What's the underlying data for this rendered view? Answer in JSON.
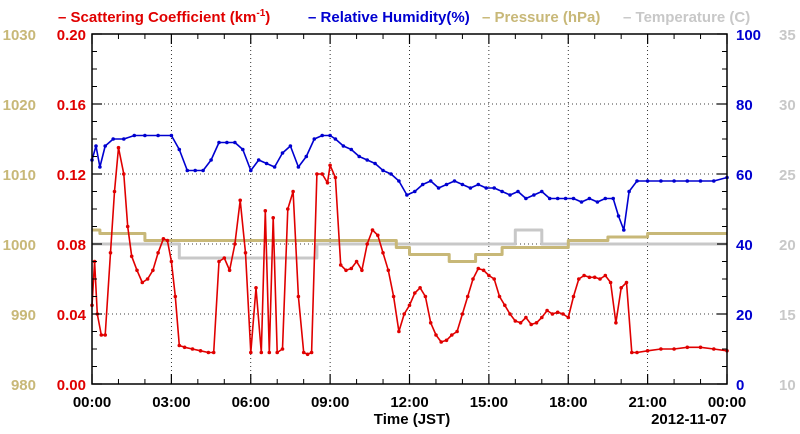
{
  "chart_data": {
    "type": "line",
    "legend": {
      "placement": "top",
      "items": [
        {
          "prefix": "– ",
          "text": "Scattering Coefficient (km",
          "sup": "-1",
          "suffix": ")",
          "color": "#e00000"
        },
        {
          "prefix": "– ",
          "text": "Relative Humidity(%)",
          "color": "#0000d0"
        },
        {
          "prefix": "– ",
          "text": "Pressure (hPa)",
          "color": "#c8b878"
        },
        {
          "prefix": "– ",
          "text": "Temperature (C)",
          "color": "#c8c8c8"
        }
      ]
    },
    "xlabel": "Time (JST)",
    "date_label": "2012-11-07",
    "x_ticks": [
      "00:00",
      "03:00",
      "06:00",
      "09:00",
      "12:00",
      "15:00",
      "18:00",
      "21:00",
      "00:00"
    ],
    "grid": true,
    "axes": {
      "scattering": {
        "side": "left-inner",
        "min": 0,
        "max": 0.2,
        "ticks": [
          "0.00",
          "0.04",
          "0.08",
          "0.12",
          "0.16",
          "0.20"
        ],
        "color": "#e00000"
      },
      "pressure": {
        "side": "left-outer",
        "min": 980,
        "max": 1030,
        "ticks": [
          "980",
          "990",
          "1000",
          "1010",
          "1020",
          "1030"
        ],
        "color": "#c8b878"
      },
      "humidity": {
        "side": "right-inner",
        "min": 0,
        "max": 100,
        "ticks": [
          "0",
          "20",
          "40",
          "60",
          "80",
          "100"
        ],
        "color": "#0000d0"
      },
      "temperature": {
        "side": "right-outer",
        "min": 10,
        "max": 35,
        "ticks": [
          "10",
          "15",
          "20",
          "25",
          "30",
          "35"
        ],
        "color": "#c8c8c8"
      }
    },
    "series": [
      {
        "key": "scattering",
        "axis": "scattering",
        "color": "#e00000",
        "style": "line-markers",
        "x": [
          0,
          0.1,
          0.2,
          0.35,
          0.5,
          0.7,
          0.85,
          1.0,
          1.2,
          1.35,
          1.5,
          1.7,
          1.9,
          2.1,
          2.3,
          2.5,
          2.7,
          2.85,
          3.0,
          3.15,
          3.3,
          3.5,
          3.8,
          4.1,
          4.4,
          4.6,
          4.8,
          5.0,
          5.2,
          5.4,
          5.6,
          5.8,
          6.0,
          6.2,
          6.4,
          6.55,
          6.7,
          6.85,
          7.0,
          7.2,
          7.4,
          7.6,
          7.8,
          8.0,
          8.15,
          8.3,
          8.5,
          8.7,
          8.9,
          9.0,
          9.2,
          9.4,
          9.6,
          9.8,
          10.0,
          10.2,
          10.4,
          10.6,
          10.8,
          11.0,
          11.2,
          11.4,
          11.6,
          11.8,
          12.0,
          12.2,
          12.4,
          12.6,
          12.8,
          13.0,
          13.2,
          13.4,
          13.6,
          13.8,
          14.0,
          14.2,
          14.4,
          14.6,
          14.8,
          15.0,
          15.2,
          15.4,
          15.6,
          15.8,
          16.0,
          16.2,
          16.4,
          16.6,
          16.8,
          17.0,
          17.2,
          17.4,
          17.6,
          17.8,
          18.0,
          18.2,
          18.4,
          18.6,
          18.8,
          19.0,
          19.2,
          19.4,
          19.6,
          19.8,
          20.0,
          20.2,
          20.4,
          20.6,
          21.0,
          21.5,
          22.0,
          22.5,
          23.0,
          23.5,
          24.0
        ],
        "values": [
          0.045,
          0.07,
          0.04,
          0.028,
          0.028,
          0.075,
          0.11,
          0.135,
          0.12,
          0.09,
          0.073,
          0.065,
          0.058,
          0.06,
          0.065,
          0.075,
          0.083,
          0.082,
          0.07,
          0.05,
          0.022,
          0.021,
          0.02,
          0.019,
          0.018,
          0.018,
          0.07,
          0.072,
          0.065,
          0.08,
          0.105,
          0.075,
          0.018,
          0.055,
          0.018,
          0.099,
          0.018,
          0.095,
          0.018,
          0.02,
          0.1,
          0.11,
          0.05,
          0.018,
          0.017,
          0.018,
          0.12,
          0.12,
          0.115,
          0.125,
          0.118,
          0.068,
          0.065,
          0.066,
          0.07,
          0.065,
          0.08,
          0.088,
          0.085,
          0.075,
          0.065,
          0.05,
          0.03,
          0.04,
          0.045,
          0.052,
          0.055,
          0.05,
          0.035,
          0.028,
          0.024,
          0.025,
          0.028,
          0.03,
          0.04,
          0.05,
          0.06,
          0.066,
          0.065,
          0.062,
          0.06,
          0.05,
          0.045,
          0.04,
          0.036,
          0.035,
          0.038,
          0.034,
          0.035,
          0.038,
          0.042,
          0.04,
          0.041,
          0.04,
          0.038,
          0.05,
          0.06,
          0.062,
          0.061,
          0.061,
          0.06,
          0.062,
          0.058,
          0.035,
          0.055,
          0.058,
          0.018,
          0.018,
          0.019,
          0.02,
          0.02,
          0.021,
          0.021,
          0.02,
          0.019
        ]
      },
      {
        "key": "humidity",
        "axis": "humidity",
        "color": "#0000d0",
        "style": "line-markers",
        "x": [
          0,
          0.15,
          0.3,
          0.5,
          0.8,
          1.2,
          1.6,
          2.0,
          2.5,
          3.0,
          3.3,
          3.6,
          3.9,
          4.2,
          4.5,
          4.8,
          5.1,
          5.4,
          5.7,
          6.0,
          6.3,
          6.6,
          6.9,
          7.2,
          7.5,
          7.8,
          8.1,
          8.4,
          8.7,
          9.0,
          9.2,
          9.5,
          9.8,
          10.1,
          10.4,
          10.7,
          11.0,
          11.3,
          11.6,
          11.9,
          12.2,
          12.5,
          12.8,
          13.1,
          13.4,
          13.7,
          14.0,
          14.3,
          14.6,
          14.9,
          15.2,
          15.5,
          15.8,
          16.1,
          16.4,
          16.7,
          17.0,
          17.3,
          17.6,
          17.9,
          18.2,
          18.5,
          18.8,
          19.1,
          19.4,
          19.7,
          19.9,
          20.1,
          20.3,
          20.6,
          21.0,
          21.5,
          22.0,
          22.5,
          23.0,
          23.5,
          24.0
        ],
        "values": [
          64,
          68,
          62,
          68,
          70,
          70,
          71,
          71,
          71,
          71,
          67,
          61,
          61,
          61,
          64,
          69,
          69,
          69,
          67,
          61,
          64,
          63,
          62,
          66,
          68,
          62,
          65,
          70,
          71,
          71,
          70,
          68,
          67,
          65,
          64,
          63,
          61,
          60,
          58,
          54,
          55,
          57,
          58,
          56,
          57,
          58,
          57,
          56,
          57,
          56,
          56,
          55,
          54,
          55,
          53,
          54,
          55,
          53,
          53,
          53,
          53,
          52,
          53,
          52,
          53,
          53,
          48,
          44,
          55,
          58,
          58,
          58,
          58,
          58,
          58,
          58,
          59
        ]
      },
      {
        "key": "pressure",
        "axis": "pressure",
        "color": "#c8b878",
        "style": "step",
        "x": [
          0,
          0.3,
          0.3,
          2.0,
          2.0,
          11.5,
          11.5,
          12.0,
          12.0,
          13.5,
          13.5,
          14.5,
          14.5,
          15.5,
          15.5,
          18.0,
          18.0,
          19.5,
          19.5,
          21.0,
          21.0,
          24.0
        ],
        "values": [
          1002,
          1002,
          1001.5,
          1001.5,
          1000.5,
          1000.5,
          999.5,
          999.5,
          998.5,
          998.5,
          997.5,
          997.5,
          998.5,
          998.5,
          999.5,
          999.5,
          1000.5,
          1000.5,
          1001,
          1001,
          1001.5,
          1001.5
        ]
      },
      {
        "key": "temperature",
        "axis": "temperature",
        "color": "#c8c8c8",
        "style": "step",
        "x": [
          0,
          3.3,
          3.3,
          8.5,
          8.5,
          16.0,
          16.0,
          17.0,
          17.0,
          24.0
        ],
        "values": [
          20,
          20,
          19,
          19,
          20,
          20,
          21,
          21,
          20,
          20
        ]
      }
    ]
  }
}
